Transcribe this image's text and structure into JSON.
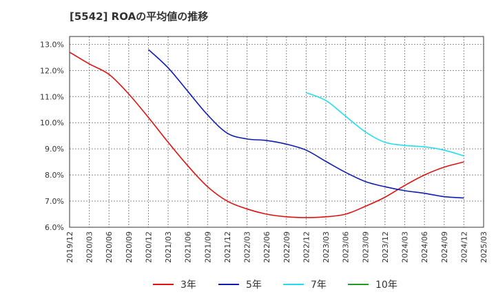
{
  "chart_data": {
    "type": "line",
    "title": "[5542]  ROAの平均値の推移",
    "xlabel": "",
    "ylabel": "",
    "ylim": [
      6.0,
      13.3
    ],
    "yticks": [
      "6.0%",
      "7.0%",
      "8.0%",
      "9.0%",
      "10.0%",
      "11.0%",
      "12.0%",
      "13.0%"
    ],
    "ytick_values": [
      6,
      7,
      8,
      9,
      10,
      11,
      12,
      13
    ],
    "categories": [
      "2019/12",
      "2020/03",
      "2020/06",
      "2020/09",
      "2020/12",
      "2021/03",
      "2021/06",
      "2021/09",
      "2021/12",
      "2022/03",
      "2022/06",
      "2022/09",
      "2022/12",
      "2023/03",
      "2023/06",
      "2023/09",
      "2023/12",
      "2024/03",
      "2024/06",
      "2024/09",
      "2024/12",
      "2025/03"
    ],
    "grid": true,
    "legend_position": "bottom",
    "series": [
      {
        "name": "3年",
        "color": "#dd1111",
        "values": [
          12.7,
          12.25,
          11.85,
          11.1,
          10.2,
          9.25,
          8.35,
          7.55,
          7.0,
          6.7,
          6.5,
          6.4,
          6.37,
          6.4,
          6.5,
          6.8,
          7.15,
          7.6,
          8.0,
          8.3,
          8.5,
          null
        ]
      },
      {
        "name": "5年",
        "color": "#0d1cb0",
        "values": [
          null,
          null,
          null,
          null,
          12.8,
          12.1,
          11.2,
          10.3,
          9.6,
          9.38,
          9.32,
          9.18,
          8.95,
          8.52,
          8.1,
          7.75,
          7.55,
          7.4,
          7.3,
          7.17,
          7.12,
          null
        ]
      },
      {
        "name": "7年",
        "color": "#22dcf0",
        "values": [
          null,
          null,
          null,
          null,
          null,
          null,
          null,
          null,
          null,
          null,
          null,
          null,
          11.15,
          10.85,
          10.25,
          9.65,
          9.25,
          9.13,
          9.08,
          8.95,
          8.73,
          null
        ]
      },
      {
        "name": "10年",
        "color": "#229922",
        "values": [
          null,
          null,
          null,
          null,
          null,
          null,
          null,
          null,
          null,
          null,
          null,
          null,
          null,
          null,
          null,
          null,
          null,
          null,
          null,
          null,
          null,
          null
        ]
      }
    ]
  }
}
